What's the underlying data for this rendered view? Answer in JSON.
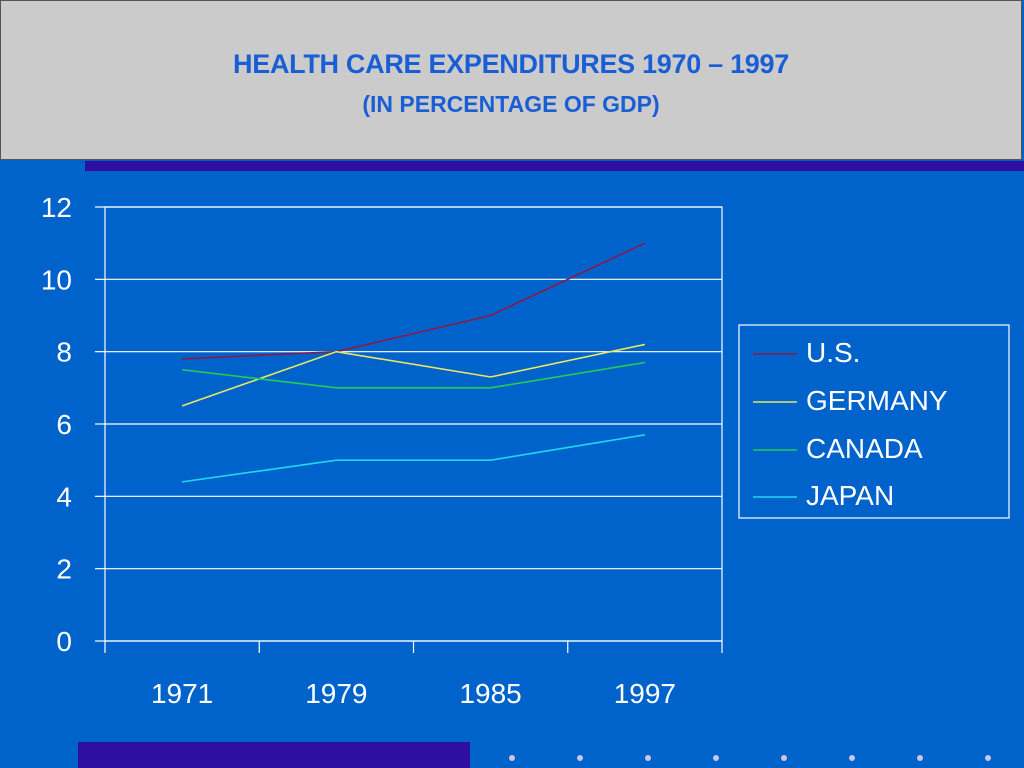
{
  "slide": {
    "title_line1": "HEALTH CARE EXPENDITURES 1970 – 1997",
    "title_line2": "(IN PERCENTAGE OF GDP)"
  },
  "colors": {
    "background": "#0063CC",
    "title_text": "#1A5ED6",
    "band": "#2E0FA2"
  },
  "chart_data": {
    "type": "line",
    "title": "HEALTH CARE EXPENDITURES 1970 – 1997",
    "subtitle": "(IN PERCENTAGE OF GDP)",
    "xlabel": "",
    "ylabel": "",
    "categories": [
      "1971",
      "1979",
      "1985",
      "1997"
    ],
    "ylim": [
      0,
      12
    ],
    "yticks": [
      "0",
      "2",
      "4",
      "6",
      "8",
      "10",
      "12"
    ],
    "grid": true,
    "legend_placement": "right",
    "series": [
      {
        "name": "U.S.",
        "color": "#8B1A4A",
        "values": [
          7.8,
          8.0,
          9.0,
          11.0
        ]
      },
      {
        "name": "GERMANY",
        "color": "#E8E860",
        "values": [
          6.5,
          8.0,
          7.3,
          8.2
        ]
      },
      {
        "name": "CANADA",
        "color": "#22CC55",
        "values": [
          7.5,
          7.0,
          7.0,
          7.7
        ]
      },
      {
        "name": "JAPAN",
        "color": "#22D8F0",
        "values": [
          4.4,
          5.0,
          5.0,
          5.7
        ]
      }
    ]
  }
}
